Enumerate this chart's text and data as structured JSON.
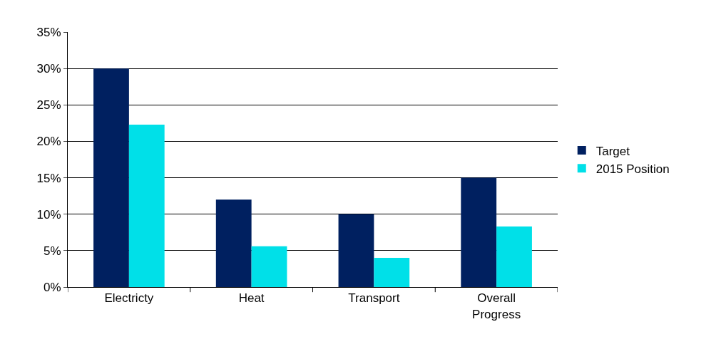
{
  "chart_data": {
    "type": "bar",
    "categories": [
      "Electricty",
      "Heat",
      "Transport",
      "Overall Progress"
    ],
    "series": [
      {
        "name": "Target",
        "color": "#002060",
        "values": [
          30,
          12,
          10,
          15
        ]
      },
      {
        "name": "2015 Position",
        "color": "#00e0e8",
        "values": [
          22.3,
          5.6,
          4.0,
          8.3
        ]
      }
    ],
    "ylim": [
      0,
      35
    ],
    "yticks": [
      {
        "value": 0,
        "label": "0%"
      },
      {
        "value": 5,
        "label": "5%"
      },
      {
        "value": 10,
        "label": "10%"
      },
      {
        "value": 15,
        "label": "15%"
      },
      {
        "value": 20,
        "label": "20%"
      },
      {
        "value": 25,
        "label": "25%"
      },
      {
        "value": 30,
        "label": "30%"
      },
      {
        "value": 35,
        "label": "35%"
      }
    ],
    "grid": "y",
    "legend": "right"
  }
}
